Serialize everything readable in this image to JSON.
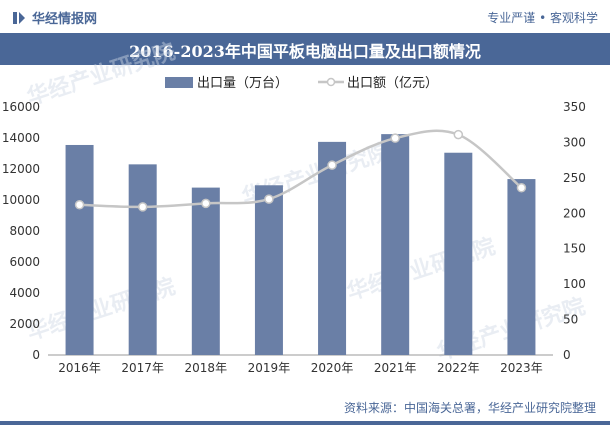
{
  "header": {
    "brand": "华经情报网",
    "slogan": "专业严谨 • 客观科学"
  },
  "watermark": "华经产业研究院",
  "source": "资料来源：中国海关总署，华经产业研究院整理",
  "colors": {
    "bar": "#6a7fa6",
    "line": "#c6c6c6",
    "brand": "#4a6797"
  },
  "chart_data": {
    "type": "bar",
    "title": "2016-2023年中国平板电脑出口量及出口额情况",
    "categories": [
      "2016年",
      "2017年",
      "2018年",
      "2019年",
      "2020年",
      "2021年",
      "2022年",
      "2023年"
    ],
    "series": [
      {
        "name": "出口量（万台）",
        "type": "bar",
        "axis": "left",
        "values": [
          13550,
          12300,
          10800,
          10950,
          13750,
          14250,
          13050,
          11350
        ]
      },
      {
        "name": "出口额（亿元）",
        "type": "line",
        "axis": "right",
        "values": [
          212,
          209,
          214,
          220,
          268,
          306,
          311,
          236
        ]
      }
    ],
    "y_left": {
      "min": 0,
      "max": 16000,
      "ticks": [
        0,
        2000,
        4000,
        6000,
        8000,
        10000,
        12000,
        14000,
        16000
      ]
    },
    "y_right": {
      "min": 0,
      "max": 350,
      "ticks": [
        0,
        50,
        100,
        150,
        200,
        250,
        300,
        350
      ]
    },
    "legend_position": "top-center",
    "grid": false
  }
}
